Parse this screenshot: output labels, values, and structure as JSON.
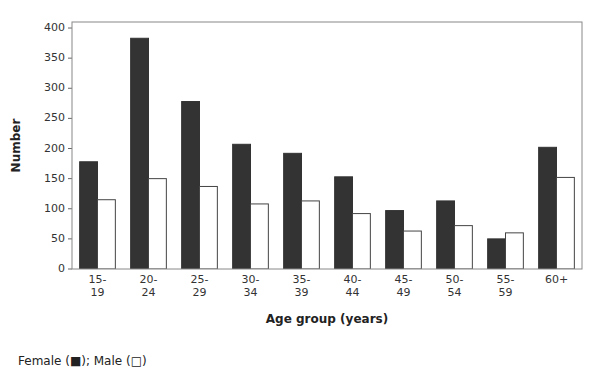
{
  "chart_data": {
    "type": "bar",
    "xlabel": "Age group (years)",
    "ylabel": "Number",
    "annotations": [
      "Female (■); Male (□)"
    ],
    "categories": [
      "15-\n19",
      "20-\n24",
      "25-\n29",
      "30-\n34",
      "35-\n39",
      "40-\n44",
      "45-\n49",
      "50-\n54",
      "55-\n59",
      "60+"
    ],
    "series": [
      {
        "color": "#333333",
        "values": [
          178,
          383,
          278,
          207,
          192,
          153,
          97,
          113,
          50,
          202
        ]
      },
      {
        "color": "#ffffff",
        "values": [
          115,
          150,
          137,
          108,
          113,
          92,
          63,
          72,
          60,
          152
        ]
      }
    ],
    "ylim": [
      0,
      410
    ],
    "yticks": [
      0,
      50,
      100,
      150,
      200,
      250,
      300,
      350,
      400
    ],
    "grid": false
  }
}
